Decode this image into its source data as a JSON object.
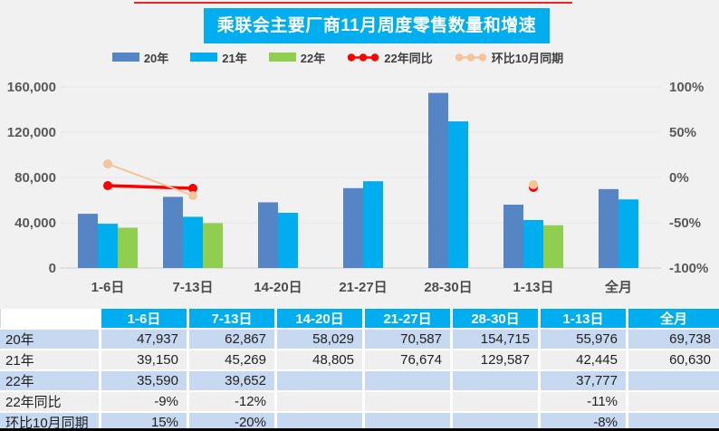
{
  "title": "乘联会主要厂商11月周度零售数量和增速",
  "legend": [
    {
      "label": "20年",
      "type": "bar",
      "color": "#5585c4"
    },
    {
      "label": "21年",
      "type": "bar",
      "color": "#00aeef"
    },
    {
      "label": "22年",
      "type": "bar",
      "color": "#8fce4e"
    },
    {
      "label": "22年同比",
      "type": "line",
      "color": "#fe0000"
    },
    {
      "label": "环比10月同期",
      "type": "line",
      "color": "#f5c498"
    }
  ],
  "chart_data": {
    "type": "bar",
    "subtype": "grouped bars with two percentage line series (combo chart)",
    "title": "乘联会主要厂商11月周度零售数量和增速",
    "categories": [
      "1-6日",
      "7-13日",
      "14-20日",
      "21-27日",
      "28-30日",
      "1-13日",
      "全月"
    ],
    "series": [
      {
        "name": "20年",
        "type": "bar",
        "axis": "left",
        "color": "#5585c4",
        "values": [
          47937,
          62867,
          58029,
          70587,
          154715,
          55976,
          69738
        ]
      },
      {
        "name": "21年",
        "type": "bar",
        "axis": "left",
        "color": "#00aeef",
        "values": [
          39150,
          45269,
          48805,
          76674,
          129587,
          42445,
          60630
        ]
      },
      {
        "name": "22年",
        "type": "bar",
        "axis": "left",
        "color": "#8fce4e",
        "values": [
          35590,
          39652,
          null,
          null,
          null,
          37777,
          null
        ]
      },
      {
        "name": "22年同比",
        "type": "line",
        "axis": "right",
        "color": "#fe0000",
        "values": [
          -9,
          -12,
          null,
          null,
          null,
          -11,
          null
        ]
      },
      {
        "name": "环比10月同期",
        "type": "line",
        "axis": "right",
        "color": "#f5c498",
        "values": [
          15,
          -20,
          null,
          null,
          null,
          -8,
          null
        ]
      }
    ],
    "left_axis": {
      "min": 0,
      "max": 160000,
      "ticks": [
        "160,000",
        "120,000",
        "80,000",
        "40,000",
        "0"
      ]
    },
    "right_axis": {
      "min": -100,
      "max": 100,
      "ticks": [
        "100%",
        "50%",
        "0%",
        "-50%",
        "-100%"
      ]
    },
    "legend_position": "top",
    "grid": false,
    "plot_background": "#f1f1f2"
  },
  "table": {
    "col_headers": [
      "",
      "1-6日",
      "7-13日",
      "14-20日",
      "21-27日",
      "28-30日",
      "1-13日",
      "全月"
    ],
    "rows": [
      {
        "label": "20年",
        "cells": [
          "47,937",
          "62,867",
          "58,029",
          "70,587",
          "154,715",
          "55,976",
          "69,738"
        ]
      },
      {
        "label": "21年",
        "cells": [
          "39,150",
          "45,269",
          "48,805",
          "76,674",
          "129,587",
          "42,445",
          "60,630"
        ]
      },
      {
        "label": "22年",
        "cells": [
          "35,590",
          "39,652",
          "",
          "",
          "",
          "37,777",
          ""
        ]
      },
      {
        "label": "22年同比",
        "cells": [
          "-9%",
          "-12%",
          "",
          "",
          "",
          "-11%",
          ""
        ]
      },
      {
        "label": "环比10月同期",
        "cells": [
          "15%",
          "-20%",
          "",
          "",
          "",
          "-8%",
          ""
        ]
      }
    ]
  },
  "colors": {
    "title_bg": "#00aeef",
    "title_text": "#ffffff",
    "panel_bg": "#f1f1f2",
    "table_header_bg": "#00aeef",
    "table_row_blue": "#c7d9f0",
    "table_row_light": "#efefef",
    "axis_text": "#595959",
    "top_accent": "#f00000",
    "bottom_rule": "#000000"
  }
}
